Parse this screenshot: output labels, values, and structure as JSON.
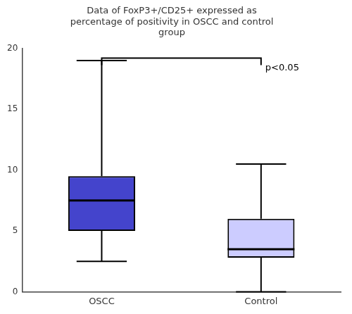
{
  "chart_data": {
    "type": "box",
    "title": "Data of FoxP3+/CD25+ expressed as\npercentage of positivity in OSCC and control\ngroup",
    "categories": [
      "OSCC",
      "Control"
    ],
    "whisker_low": [
      2.5,
      0.0
    ],
    "q1": [
      5.0,
      2.8
    ],
    "median": [
      7.5,
      3.5
    ],
    "q3": [
      9.5,
      6.0
    ],
    "whisker_high": [
      19.0,
      10.5
    ],
    "colors": [
      "#4444cc",
      "#ccccff"
    ],
    "annotations": [
      {
        "text": "p<0.05",
        "y": 19.2
      }
    ],
    "ylim": [
      0,
      20
    ],
    "yticks": [
      0,
      5,
      10,
      15,
      20
    ],
    "grid": false
  }
}
